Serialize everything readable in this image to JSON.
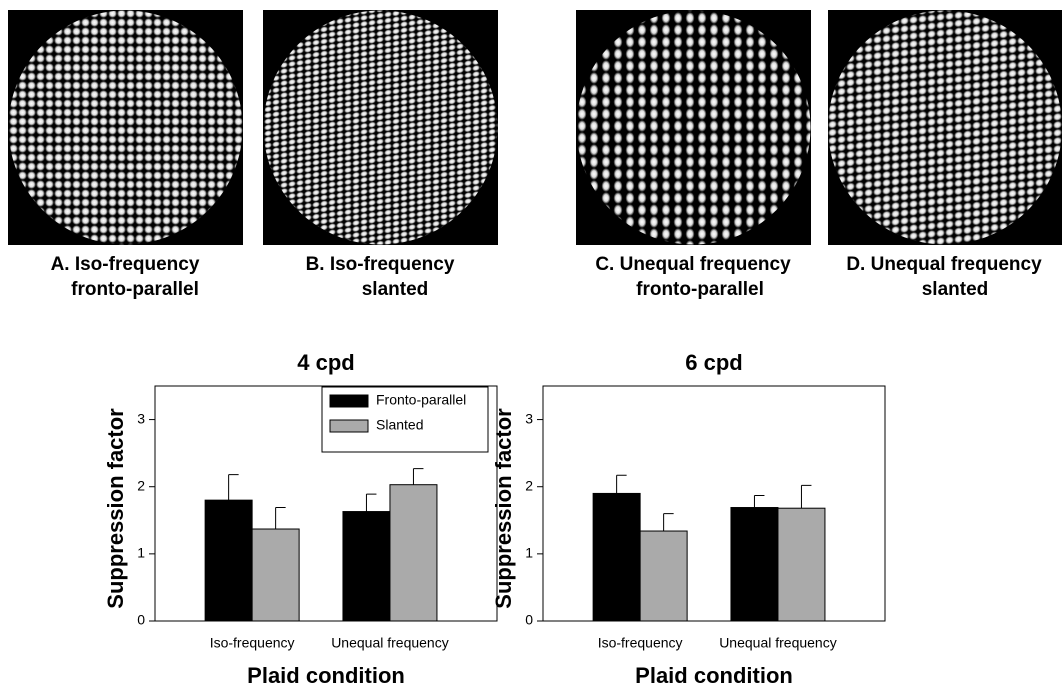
{
  "panels": [
    {
      "label": "A. Iso-frequency",
      "sublabel": "fronto-parallel"
    },
    {
      "label": "B. Iso-frequency",
      "sublabel": "slanted"
    },
    {
      "label": "C.  Unequal frequency",
      "sublabel": "fronto-parallel"
    },
    {
      "label": "D.  Unequal frequency",
      "sublabel": "slanted"
    }
  ],
  "chart_data": [
    {
      "type": "bar",
      "title": "4 cpd",
      "y_label": "Suppression factor",
      "x_label": "Plaid condition",
      "categories": [
        "Iso-frequency",
        "Unequal frequency"
      ],
      "series": [
        {
          "name": "Fronto-parallel",
          "color": "#000000",
          "values": [
            1.8,
            1.63
          ],
          "errors": [
            0.38,
            0.26
          ]
        },
        {
          "name": "Slanted",
          "color": "#aaaaaa",
          "values": [
            1.37,
            2.03
          ],
          "errors": [
            0.32,
            0.24
          ]
        }
      ],
      "ylim": [
        0,
        3.5
      ],
      "yticks": [
        0,
        1,
        2,
        3
      ],
      "legend": "upper right"
    },
    {
      "type": "bar",
      "title": "6 cpd",
      "y_label": "Suppression factor",
      "x_label": "Plaid condition",
      "categories": [
        "Iso-frequency",
        "Unequal frequency"
      ],
      "series": [
        {
          "name": "Fronto-parallel",
          "color": "#000000",
          "values": [
            1.9,
            1.69
          ],
          "errors": [
            0.27,
            0.18
          ]
        },
        {
          "name": "Slanted",
          "color": "#aaaaaa",
          "values": [
            1.34,
            1.68
          ],
          "errors": [
            0.26,
            0.34
          ]
        }
      ],
      "ylim": [
        0,
        3.5
      ],
      "yticks": [
        0,
        1,
        2,
        3
      ]
    }
  ]
}
